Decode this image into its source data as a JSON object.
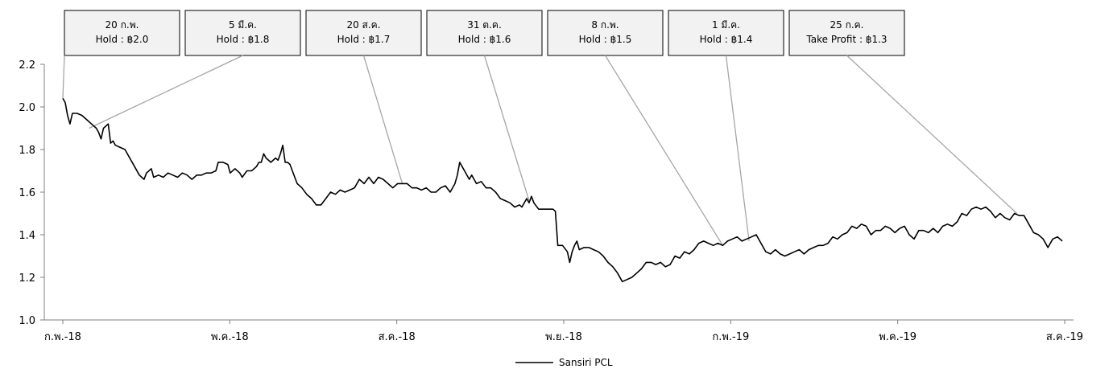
{
  "chart_data": {
    "type": "line",
    "ylim": [
      1.0,
      2.2
    ],
    "y_ticks": [
      "1.0",
      "1.2",
      "1.4",
      "1.6",
      "1.8",
      "2.0",
      "2.2"
    ],
    "x_ticks": [
      "ก.พ.-18",
      "พ.ค.-18",
      "ส.ค.-18",
      "พ.ย.-18",
      "ก.พ.-19",
      "พ.ค.-19",
      "ส.ค.-19"
    ],
    "grid": false,
    "legend_position": "bottom",
    "colors": {
      "line": "#000000",
      "box_fill": "#f2f2f2",
      "box_border": "#000000",
      "leader": "#a6a6a6",
      "axis": "#7f7f7f"
    },
    "series": [
      {
        "name": "Sansiri PCL",
        "points": [
          [
            0,
            2.04
          ],
          [
            1,
            2.02
          ],
          [
            2,
            1.96
          ],
          [
            3,
            1.92
          ],
          [
            4,
            1.97
          ],
          [
            6,
            1.97
          ],
          [
            8,
            1.96
          ],
          [
            10,
            1.94
          ],
          [
            12,
            1.92
          ],
          [
            14,
            1.9
          ],
          [
            15,
            1.88
          ],
          [
            16,
            1.85
          ],
          [
            17,
            1.9
          ],
          [
            18,
            1.91
          ],
          [
            19,
            1.92
          ],
          [
            20,
            1.83
          ],
          [
            21,
            1.84
          ],
          [
            22,
            1.82
          ],
          [
            24,
            1.81
          ],
          [
            26,
            1.8
          ],
          [
            28,
            1.76
          ],
          [
            30,
            1.72
          ],
          [
            32,
            1.68
          ],
          [
            34,
            1.66
          ],
          [
            35,
            1.69
          ],
          [
            37,
            1.71
          ],
          [
            38,
            1.67
          ],
          [
            40,
            1.68
          ],
          [
            42,
            1.67
          ],
          [
            44,
            1.69
          ],
          [
            46,
            1.68
          ],
          [
            48,
            1.67
          ],
          [
            50,
            1.69
          ],
          [
            52,
            1.68
          ],
          [
            54,
            1.66
          ],
          [
            56,
            1.68
          ],
          [
            58,
            1.68
          ],
          [
            60,
            1.69
          ],
          [
            62,
            1.69
          ],
          [
            64,
            1.7
          ],
          [
            65,
            1.74
          ],
          [
            67,
            1.74
          ],
          [
            69,
            1.73
          ],
          [
            70,
            1.69
          ],
          [
            72,
            1.71
          ],
          [
            74,
            1.69
          ],
          [
            75,
            1.67
          ],
          [
            77,
            1.7
          ],
          [
            79,
            1.7
          ],
          [
            81,
            1.72
          ],
          [
            82,
            1.74
          ],
          [
            83,
            1.74
          ],
          [
            84,
            1.78
          ],
          [
            85,
            1.76
          ],
          [
            87,
            1.74
          ],
          [
            89,
            1.76
          ],
          [
            90,
            1.75
          ],
          [
            91,
            1.78
          ],
          [
            92,
            1.82
          ],
          [
            93,
            1.74
          ],
          [
            94,
            1.74
          ],
          [
            95,
            1.73
          ],
          [
            97,
            1.67
          ],
          [
            98,
            1.64
          ],
          [
            100,
            1.62
          ],
          [
            102,
            1.59
          ],
          [
            104,
            1.57
          ],
          [
            106,
            1.54
          ],
          [
            108,
            1.54
          ],
          [
            110,
            1.57
          ],
          [
            112,
            1.6
          ],
          [
            114,
            1.59
          ],
          [
            116,
            1.61
          ],
          [
            118,
            1.6
          ],
          [
            120,
            1.61
          ],
          [
            122,
            1.62
          ],
          [
            124,
            1.66
          ],
          [
            126,
            1.64
          ],
          [
            128,
            1.67
          ],
          [
            130,
            1.64
          ],
          [
            132,
            1.67
          ],
          [
            134,
            1.66
          ],
          [
            136,
            1.64
          ],
          [
            138,
            1.62
          ],
          [
            140,
            1.64
          ],
          [
            142,
            1.64
          ],
          [
            144,
            1.64
          ],
          [
            146,
            1.62
          ],
          [
            148,
            1.62
          ],
          [
            150,
            1.61
          ],
          [
            152,
            1.62
          ],
          [
            154,
            1.6
          ],
          [
            156,
            1.6
          ],
          [
            158,
            1.62
          ],
          [
            160,
            1.63
          ],
          [
            162,
            1.6
          ],
          [
            164,
            1.64
          ],
          [
            165,
            1.68
          ],
          [
            166,
            1.74
          ],
          [
            167,
            1.72
          ],
          [
            168,
            1.7
          ],
          [
            170,
            1.66
          ],
          [
            171,
            1.68
          ],
          [
            173,
            1.64
          ],
          [
            175,
            1.65
          ],
          [
            177,
            1.62
          ],
          [
            179,
            1.62
          ],
          [
            181,
            1.6
          ],
          [
            183,
            1.57
          ],
          [
            185,
            1.56
          ],
          [
            187,
            1.55
          ],
          [
            189,
            1.53
          ],
          [
            191,
            1.54
          ],
          [
            192,
            1.53
          ],
          [
            194,
            1.57
          ],
          [
            195,
            1.55
          ],
          [
            196,
            1.58
          ],
          [
            197,
            1.55
          ],
          [
            199,
            1.52
          ],
          [
            201,
            1.52
          ],
          [
            203,
            1.52
          ],
          [
            205,
            1.52
          ],
          [
            206,
            1.51
          ],
          [
            207,
            1.35
          ],
          [
            209,
            1.35
          ],
          [
            211,
            1.32
          ],
          [
            212,
            1.27
          ],
          [
            213,
            1.32
          ],
          [
            214,
            1.35
          ],
          [
            215,
            1.37
          ],
          [
            216,
            1.33
          ],
          [
            218,
            1.34
          ],
          [
            220,
            1.34
          ],
          [
            222,
            1.33
          ],
          [
            224,
            1.32
          ],
          [
            226,
            1.3
          ],
          [
            228,
            1.27
          ],
          [
            230,
            1.25
          ],
          [
            232,
            1.22
          ],
          [
            234,
            1.18
          ],
          [
            236,
            1.19
          ],
          [
            238,
            1.2
          ],
          [
            240,
            1.22
          ],
          [
            242,
            1.24
          ],
          [
            244,
            1.27
          ],
          [
            246,
            1.27
          ],
          [
            248,
            1.26
          ],
          [
            250,
            1.27
          ],
          [
            252,
            1.25
          ],
          [
            254,
            1.26
          ],
          [
            256,
            1.3
          ],
          [
            258,
            1.29
          ],
          [
            260,
            1.32
          ],
          [
            262,
            1.31
          ],
          [
            264,
            1.33
          ],
          [
            266,
            1.36
          ],
          [
            268,
            1.37
          ],
          [
            270,
            1.36
          ],
          [
            272,
            1.35
          ],
          [
            274,
            1.36
          ],
          [
            276,
            1.35
          ],
          [
            278,
            1.37
          ],
          [
            280,
            1.38
          ],
          [
            282,
            1.39
          ],
          [
            284,
            1.37
          ],
          [
            286,
            1.38
          ],
          [
            288,
            1.39
          ],
          [
            290,
            1.4
          ],
          [
            292,
            1.36
          ],
          [
            294,
            1.32
          ],
          [
            296,
            1.31
          ],
          [
            298,
            1.33
          ],
          [
            300,
            1.31
          ],
          [
            302,
            1.3
          ],
          [
            304,
            1.31
          ],
          [
            306,
            1.32
          ],
          [
            308,
            1.33
          ],
          [
            310,
            1.31
          ],
          [
            312,
            1.33
          ],
          [
            314,
            1.34
          ],
          [
            316,
            1.35
          ],
          [
            318,
            1.35
          ],
          [
            320,
            1.36
          ],
          [
            322,
            1.39
          ],
          [
            324,
            1.38
          ],
          [
            326,
            1.4
          ],
          [
            328,
            1.41
          ],
          [
            330,
            1.44
          ],
          [
            332,
            1.43
          ],
          [
            334,
            1.45
          ],
          [
            336,
            1.44
          ],
          [
            338,
            1.4
          ],
          [
            340,
            1.42
          ],
          [
            342,
            1.42
          ],
          [
            344,
            1.44
          ],
          [
            346,
            1.43
          ],
          [
            348,
            1.41
          ],
          [
            350,
            1.43
          ],
          [
            352,
            1.44
          ],
          [
            354,
            1.4
          ],
          [
            356,
            1.38
          ],
          [
            358,
            1.42
          ],
          [
            360,
            1.42
          ],
          [
            362,
            1.41
          ],
          [
            364,
            1.43
          ],
          [
            366,
            1.41
          ],
          [
            368,
            1.44
          ],
          [
            370,
            1.45
          ],
          [
            372,
            1.44
          ],
          [
            374,
            1.46
          ],
          [
            376,
            1.5
          ],
          [
            378,
            1.49
          ],
          [
            380,
            1.52
          ],
          [
            382,
            1.53
          ],
          [
            384,
            1.52
          ],
          [
            386,
            1.53
          ],
          [
            388,
            1.51
          ],
          [
            390,
            1.48
          ],
          [
            392,
            1.5
          ],
          [
            394,
            1.48
          ],
          [
            396,
            1.47
          ],
          [
            398,
            1.5
          ],
          [
            400,
            1.49
          ],
          [
            402,
            1.49
          ],
          [
            404,
            1.45
          ],
          [
            406,
            1.41
          ],
          [
            408,
            1.4
          ],
          [
            410,
            1.38
          ],
          [
            412,
            1.34
          ],
          [
            414,
            1.38
          ],
          [
            416,
            1.39
          ],
          [
            418,
            1.37
          ]
        ]
      }
    ],
    "annotations": [
      {
        "date": "20 ก.พ.",
        "label": "Hold : ฿2.0",
        "at": [
          0,
          2.04
        ]
      },
      {
        "date": "5 มี.ค.",
        "label": "Hold : ฿1.8",
        "at": [
          11,
          1.9
        ]
      },
      {
        "date": "20 ส.ค.",
        "label": "Hold : ฿1.7",
        "at": [
          142,
          1.64
        ]
      },
      {
        "date": "31 ต.ค.",
        "label": "Hold : ฿1.6",
        "at": [
          195,
          1.56
        ]
      },
      {
        "date": "8 ก.พ.",
        "label": "Hold : ฿1.5",
        "at": [
          276,
          1.35
        ]
      },
      {
        "date": "1 มี.ค.",
        "label": "Hold : ฿1.4",
        "at": [
          287,
          1.37
        ]
      },
      {
        "date": "25 ก.ค.",
        "label": "Take Profit : ฿1.3",
        "at": [
          399,
          1.5
        ]
      }
    ]
  }
}
